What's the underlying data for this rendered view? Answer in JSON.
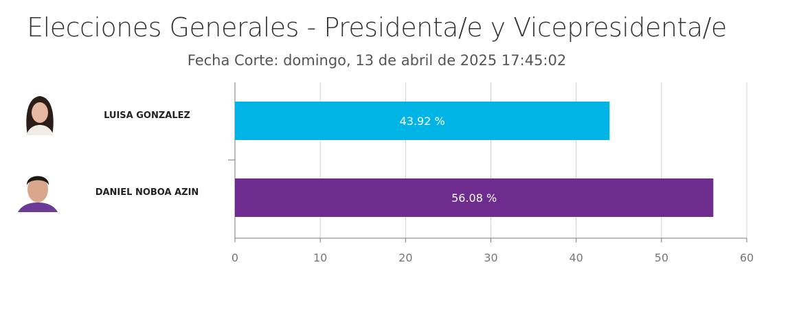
{
  "title": "Elecciones Generales - Presidenta/e y Vicepresidenta/e",
  "subtitle": "Fecha Corte: domingo, 13 de abril de 2025 17:45:02",
  "chart_data": {
    "type": "bar",
    "orientation": "horizontal",
    "categories": [
      "LUISA GONZALEZ",
      "DANIEL NOBOA AZIN"
    ],
    "values": [
      43.92,
      56.08
    ],
    "data_labels": [
      "43.92 %",
      "56.08 %"
    ],
    "colors": [
      "#00b5e6",
      "#6e2c8f"
    ],
    "xlim": [
      0,
      60
    ],
    "xticks": [
      "0",
      "10",
      "20",
      "30",
      "40",
      "50",
      "60"
    ],
    "grid": true
  }
}
